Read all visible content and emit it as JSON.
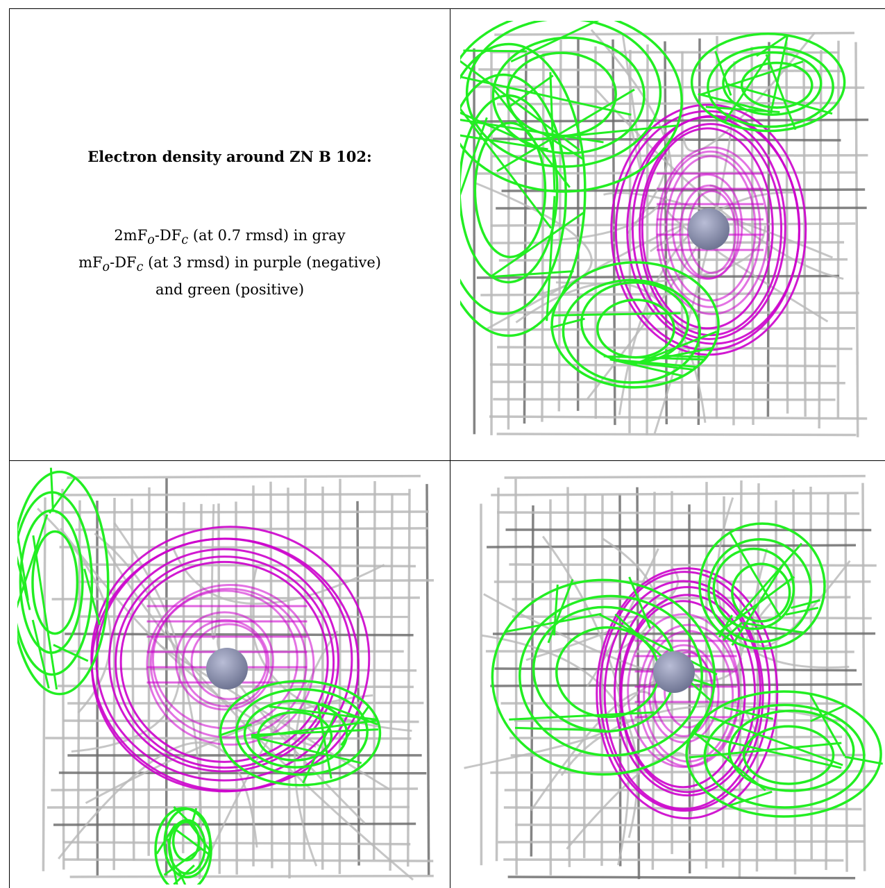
{
  "caption": {
    "title": "Electron density around ZN B 102:",
    "line1_a": "2mF",
    "line1_sub1": "o",
    "line1_b": "-DF",
    "line1_sub2": "c",
    "line1_c": " (at 0.7 rmsd) in gray",
    "line2_a": "mF",
    "line2_sub1": "o",
    "line2_b": "-DF",
    "line2_sub2": "c",
    "line2_c": " (at 3 rmsd) in purple (negative)",
    "line3": "and green (positive)"
  },
  "colors": {
    "gray_mesh": "#b8b8b8",
    "dark_mesh": "#6e6e6e",
    "positive": "#22ee22",
    "negative": "#cc00cc",
    "atom": "#6f7593"
  },
  "views": [
    {
      "name": "view-1"
    },
    {
      "name": "view-2"
    },
    {
      "name": "view-3"
    }
  ]
}
